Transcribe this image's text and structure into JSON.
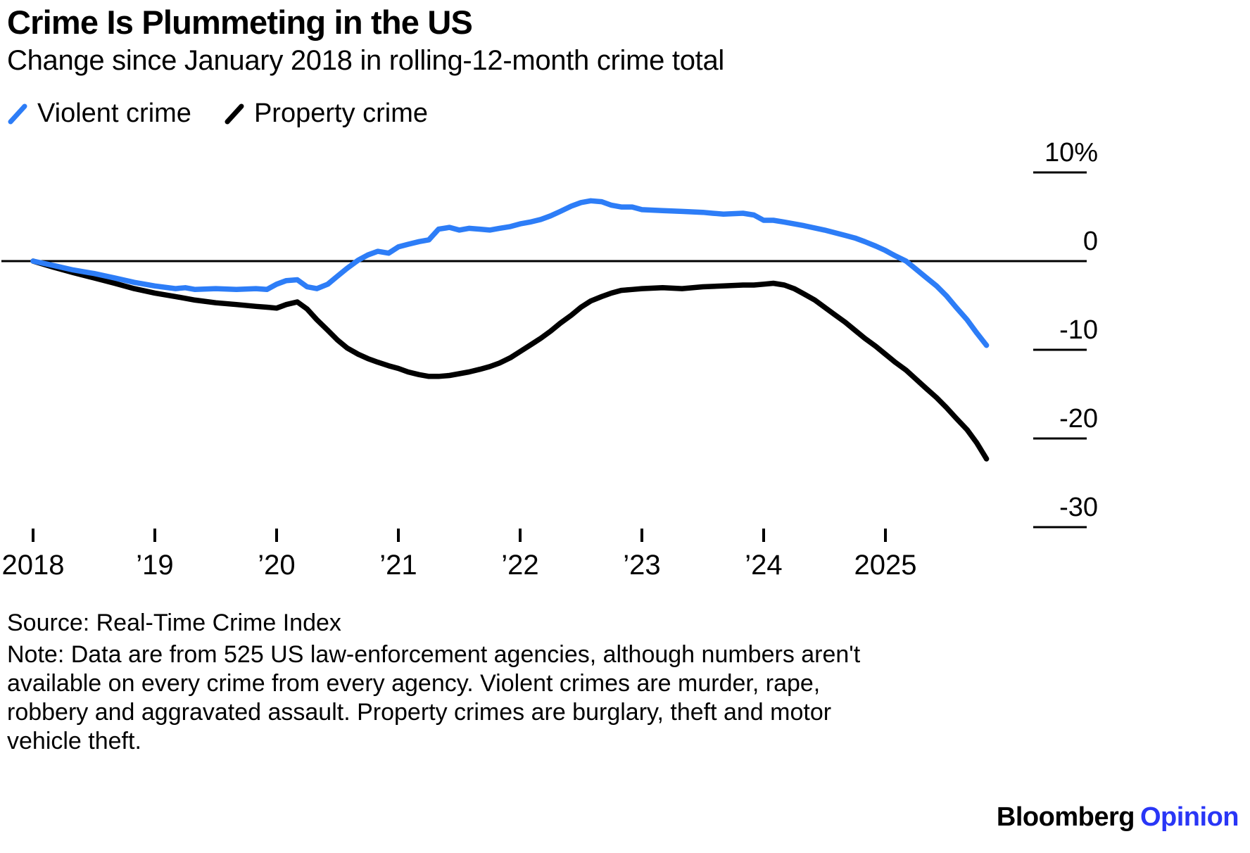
{
  "chart_data": {
    "type": "line",
    "title": "Crime Is Plummeting in the US",
    "subtitle": "Change since January 2018 in rolling-12-month crime total",
    "unit": "%",
    "legend_position": "top-left",
    "grid": "right-stubs",
    "x_axis": {
      "range": [
        2018,
        2026.1
      ],
      "ticks": [
        {
          "value": 2018,
          "label": "2018"
        },
        {
          "value": 2019,
          "label": "’19"
        },
        {
          "value": 2020,
          "label": "’20"
        },
        {
          "value": 2021,
          "label": "’21"
        },
        {
          "value": 2022,
          "label": "’22"
        },
        {
          "value": 2023,
          "label": "’23"
        },
        {
          "value": 2024,
          "label": "’24"
        },
        {
          "value": 2025,
          "label": "2025"
        }
      ]
    },
    "y_axis": {
      "range": [
        -32,
        11
      ],
      "zero_line": true,
      "ticks": [
        {
          "value": 10,
          "label": "10%"
        },
        {
          "value": 0,
          "label": "0"
        },
        {
          "value": -10,
          "label": "-10"
        },
        {
          "value": -20,
          "label": "-20"
        },
        {
          "value": -30,
          "label": "-30"
        }
      ]
    },
    "series": [
      {
        "name": "Violent crime",
        "color": "#2d7df7",
        "points": [
          [
            2018.0,
            0
          ],
          [
            2018.17,
            -0.5
          ],
          [
            2018.33,
            -1.0
          ],
          [
            2018.5,
            -1.4
          ],
          [
            2018.67,
            -1.9
          ],
          [
            2018.83,
            -2.4
          ],
          [
            2019.0,
            -2.8
          ],
          [
            2019.17,
            -3.1
          ],
          [
            2019.25,
            -3.0
          ],
          [
            2019.33,
            -3.2
          ],
          [
            2019.5,
            -3.1
          ],
          [
            2019.67,
            -3.2
          ],
          [
            2019.83,
            -3.1
          ],
          [
            2019.92,
            -3.2
          ],
          [
            2020.0,
            -2.6
          ],
          [
            2020.08,
            -2.2
          ],
          [
            2020.17,
            -2.1
          ],
          [
            2020.25,
            -2.9
          ],
          [
            2020.33,
            -3.1
          ],
          [
            2020.42,
            -2.6
          ],
          [
            2020.5,
            -1.7
          ],
          [
            2020.58,
            -0.8
          ],
          [
            2020.67,
            0.1
          ],
          [
            2020.75,
            0.7
          ],
          [
            2020.83,
            1.1
          ],
          [
            2020.92,
            0.9
          ],
          [
            2021.0,
            1.6
          ],
          [
            2021.08,
            1.9
          ],
          [
            2021.17,
            2.2
          ],
          [
            2021.25,
            2.4
          ],
          [
            2021.33,
            3.6
          ],
          [
            2021.42,
            3.8
          ],
          [
            2021.5,
            3.5
          ],
          [
            2021.58,
            3.7
          ],
          [
            2021.67,
            3.6
          ],
          [
            2021.75,
            3.5
          ],
          [
            2021.83,
            3.7
          ],
          [
            2021.92,
            3.9
          ],
          [
            2022.0,
            4.2
          ],
          [
            2022.08,
            4.4
          ],
          [
            2022.17,
            4.7
          ],
          [
            2022.25,
            5.1
          ],
          [
            2022.33,
            5.6
          ],
          [
            2022.42,
            6.2
          ],
          [
            2022.5,
            6.6
          ],
          [
            2022.58,
            6.8
          ],
          [
            2022.67,
            6.7
          ],
          [
            2022.75,
            6.3
          ],
          [
            2022.83,
            6.1
          ],
          [
            2022.92,
            6.1
          ],
          [
            2023.0,
            5.8
          ],
          [
            2023.17,
            5.7
          ],
          [
            2023.33,
            5.6
          ],
          [
            2023.5,
            5.5
          ],
          [
            2023.58,
            5.4
          ],
          [
            2023.67,
            5.3
          ],
          [
            2023.83,
            5.4
          ],
          [
            2023.92,
            5.2
          ],
          [
            2024.0,
            4.6
          ],
          [
            2024.08,
            4.6
          ],
          [
            2024.17,
            4.4
          ],
          [
            2024.33,
            4.0
          ],
          [
            2024.5,
            3.5
          ],
          [
            2024.67,
            2.9
          ],
          [
            2024.75,
            2.6
          ],
          [
            2024.83,
            2.2
          ],
          [
            2024.92,
            1.7
          ],
          [
            2025.0,
            1.2
          ],
          [
            2025.08,
            0.6
          ],
          [
            2025.17,
            0.0
          ],
          [
            2025.25,
            -0.9
          ],
          [
            2025.33,
            -1.8
          ],
          [
            2025.42,
            -2.8
          ],
          [
            2025.5,
            -3.9
          ],
          [
            2025.58,
            -5.2
          ],
          [
            2025.67,
            -6.6
          ],
          [
            2025.75,
            -8.1
          ],
          [
            2025.83,
            -9.5
          ]
        ]
      },
      {
        "name": "Property crime",
        "color": "#000000",
        "points": [
          [
            2018.0,
            0
          ],
          [
            2018.17,
            -0.7
          ],
          [
            2018.33,
            -1.3
          ],
          [
            2018.5,
            -1.9
          ],
          [
            2018.67,
            -2.5
          ],
          [
            2018.83,
            -3.1
          ],
          [
            2019.0,
            -3.6
          ],
          [
            2019.17,
            -4.0
          ],
          [
            2019.33,
            -4.4
          ],
          [
            2019.5,
            -4.7
          ],
          [
            2019.67,
            -4.9
          ],
          [
            2019.83,
            -5.1
          ],
          [
            2019.92,
            -5.2
          ],
          [
            2020.0,
            -5.3
          ],
          [
            2020.08,
            -4.9
          ],
          [
            2020.17,
            -4.6
          ],
          [
            2020.25,
            -5.4
          ],
          [
            2020.33,
            -6.6
          ],
          [
            2020.42,
            -7.8
          ],
          [
            2020.5,
            -8.9
          ],
          [
            2020.58,
            -9.8
          ],
          [
            2020.67,
            -10.5
          ],
          [
            2020.75,
            -11.0
          ],
          [
            2020.83,
            -11.4
          ],
          [
            2020.92,
            -11.8
          ],
          [
            2021.0,
            -12.1
          ],
          [
            2021.08,
            -12.5
          ],
          [
            2021.17,
            -12.8
          ],
          [
            2021.25,
            -13.0
          ],
          [
            2021.33,
            -13.0
          ],
          [
            2021.42,
            -12.9
          ],
          [
            2021.5,
            -12.7
          ],
          [
            2021.58,
            -12.5
          ],
          [
            2021.67,
            -12.2
          ],
          [
            2021.75,
            -11.9
          ],
          [
            2021.83,
            -11.5
          ],
          [
            2021.92,
            -10.9
          ],
          [
            2022.0,
            -10.2
          ],
          [
            2022.08,
            -9.5
          ],
          [
            2022.17,
            -8.7
          ],
          [
            2022.25,
            -7.9
          ],
          [
            2022.33,
            -7.0
          ],
          [
            2022.42,
            -6.1
          ],
          [
            2022.5,
            -5.2
          ],
          [
            2022.58,
            -4.5
          ],
          [
            2022.67,
            -4.0
          ],
          [
            2022.75,
            -3.6
          ],
          [
            2022.83,
            -3.3
          ],
          [
            2022.92,
            -3.2
          ],
          [
            2023.0,
            -3.1
          ],
          [
            2023.17,
            -3.0
          ],
          [
            2023.33,
            -3.1
          ],
          [
            2023.5,
            -2.9
          ],
          [
            2023.67,
            -2.8
          ],
          [
            2023.83,
            -2.7
          ],
          [
            2023.92,
            -2.7
          ],
          [
            2024.0,
            -2.6
          ],
          [
            2024.08,
            -2.5
          ],
          [
            2024.17,
            -2.7
          ],
          [
            2024.25,
            -3.1
          ],
          [
            2024.33,
            -3.7
          ],
          [
            2024.42,
            -4.4
          ],
          [
            2024.5,
            -5.2
          ],
          [
            2024.58,
            -6.0
          ],
          [
            2024.67,
            -6.9
          ],
          [
            2024.75,
            -7.8
          ],
          [
            2024.83,
            -8.7
          ],
          [
            2024.92,
            -9.6
          ],
          [
            2025.0,
            -10.5
          ],
          [
            2025.08,
            -11.4
          ],
          [
            2025.17,
            -12.3
          ],
          [
            2025.25,
            -13.3
          ],
          [
            2025.33,
            -14.3
          ],
          [
            2025.42,
            -15.4
          ],
          [
            2025.5,
            -16.5
          ],
          [
            2025.58,
            -17.7
          ],
          [
            2025.67,
            -19.0
          ],
          [
            2025.75,
            -20.5
          ],
          [
            2025.83,
            -22.3
          ]
        ]
      }
    ]
  },
  "footer": {
    "source": "Source: Real-Time Crime Index",
    "note": "Note: Data are from 525 US law-enforcement agencies, although numbers aren't available on every crime from every agency. Violent crimes are murder, rape, robbery and aggravated assault. Property crimes are burglary, theft and motor vehicle theft.",
    "brand": {
      "name": "Bloomberg",
      "edition": "Opinion",
      "edition_color": "#2936f6"
    }
  }
}
